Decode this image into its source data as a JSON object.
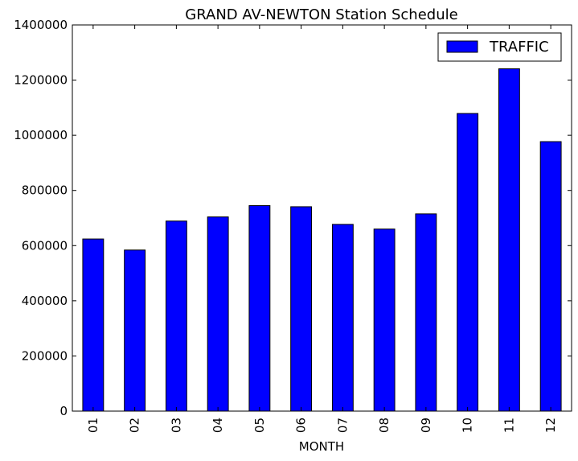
{
  "chart_data": {
    "type": "bar",
    "title": "GRAND AV-NEWTON Station Schedule",
    "xlabel": "MONTH",
    "ylabel": "",
    "categories": [
      "01",
      "02",
      "03",
      "04",
      "05",
      "06",
      "07",
      "08",
      "09",
      "10",
      "11",
      "12"
    ],
    "series": [
      {
        "name": "TRAFFIC",
        "color": "#0000ff",
        "values": [
          624000,
          584000,
          689000,
          704000,
          745000,
          741000,
          677000,
          660000,
          715000,
          1079000,
          1241000,
          977000
        ]
      }
    ],
    "ylim": [
      0,
      1400000
    ],
    "yticks": [
      0,
      200000,
      400000,
      600000,
      800000,
      1000000,
      1200000,
      1400000
    ],
    "ytick_labels": [
      "0",
      "200000",
      "400000",
      "600000",
      "800000",
      "1000000",
      "1200000",
      "1400000"
    ],
    "grid": false,
    "legend_position": "top-right"
  }
}
